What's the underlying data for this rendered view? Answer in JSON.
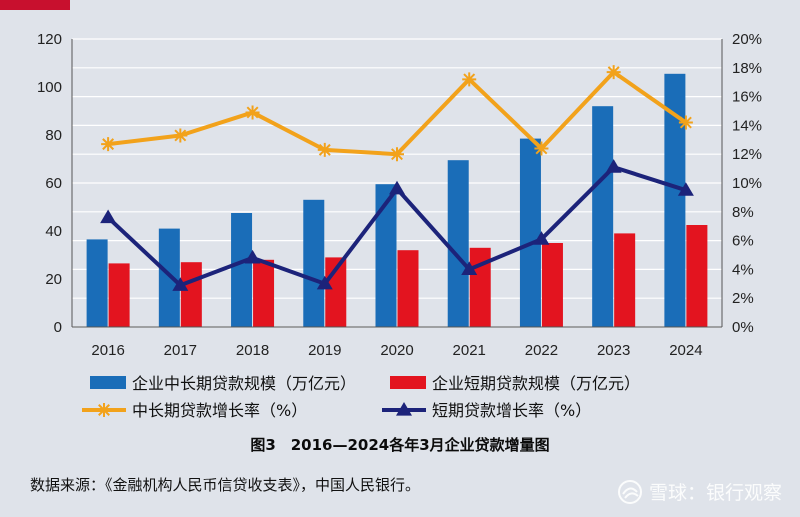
{
  "chart_data": {
    "type": "bar",
    "categories": [
      "2016",
      "2017",
      "2018",
      "2019",
      "2020",
      "2021",
      "2022",
      "2023",
      "2024"
    ],
    "left_axis": {
      "ylim": [
        0,
        120
      ],
      "ticks": [
        "0",
        "20",
        "40",
        "60",
        "80",
        "100",
        "120"
      ]
    },
    "right_axis": {
      "ylim": [
        0,
        20
      ],
      "ticks": [
        "0%",
        "2%",
        "4%",
        "6%",
        "8%",
        "10%",
        "12%",
        "14%",
        "16%",
        "18%",
        "20%"
      ]
    },
    "bar_series": [
      {
        "name": "企业中长期贷款规模（万亿元）",
        "color": "#1a6db8",
        "values": [
          36.5,
          41,
          47.5,
          53,
          59.5,
          69.5,
          78.5,
          92,
          105.5
        ]
      },
      {
        "name": "企业短期贷款规模（万亿元）",
        "color": "#e3141f",
        "values": [
          26.5,
          27,
          28,
          29,
          32,
          33,
          35,
          39,
          42.5
        ]
      }
    ],
    "line_series": [
      {
        "name": "中长期贷款增长率（%）",
        "color": "#f2a21b",
        "marker": "asterisk",
        "values": [
          12.7,
          13.3,
          14.9,
          12.3,
          12.0,
          17.2,
          12.4,
          17.7,
          14.2
        ]
      },
      {
        "name": "短期贷款增长率（%）",
        "color": "#1c237a",
        "marker": "triangle",
        "values": [
          7.6,
          2.9,
          4.8,
          3.0,
          9.6,
          4.0,
          6.1,
          11.1,
          9.5
        ]
      }
    ],
    "grid": true,
    "legend_position": "bottom"
  },
  "caption": "图3　2016—2024各年3月企业贷款增量图",
  "source": "数据来源：《金融机构人民币信贷收支表》，中国人民银行。",
  "watermark": {
    "text": "雪球：银行观察"
  }
}
